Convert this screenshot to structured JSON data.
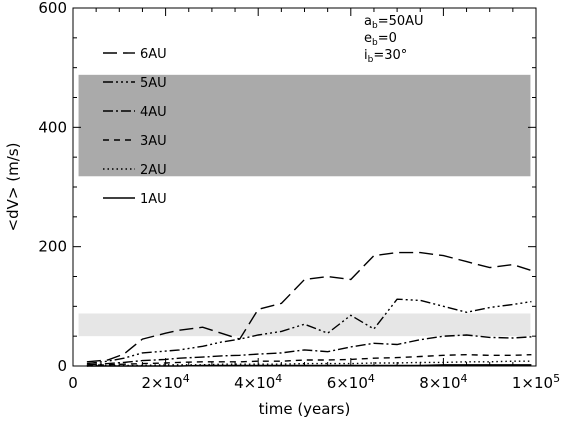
{
  "chart_data": {
    "type": "line",
    "title": "",
    "xlabel": "time (years)",
    "ylabel": "<dV> (m/s)",
    "xlim": [
      0,
      100000
    ],
    "ylim": [
      0,
      600
    ],
    "xticks": [
      {
        "value": 0,
        "base": "0",
        "exp": ""
      },
      {
        "value": 20000,
        "base": "2×10",
        "exp": "4"
      },
      {
        "value": 40000,
        "base": "4×10",
        "exp": "4"
      },
      {
        "value": 60000,
        "base": "6×10",
        "exp": "4"
      },
      {
        "value": 80000,
        "base": "8×10",
        "exp": "4"
      },
      {
        "value": 100000,
        "base": "1×10",
        "exp": "5"
      }
    ],
    "yticks": [
      {
        "value": 0,
        "label": "0"
      },
      {
        "value": 200,
        "label": "200"
      },
      {
        "value": 400,
        "label": "400"
      },
      {
        "value": 600,
        "label": "600"
      }
    ],
    "shaded_bands": [
      {
        "y0": 318,
        "y1": 488,
        "color": "#aaaaaa"
      },
      {
        "y0": 50,
        "y1": 88,
        "color": "#e6e6e6"
      }
    ],
    "annotation": [
      {
        "base": "a",
        "sub": "b",
        "text": "=50AU"
      },
      {
        "base": "e",
        "sub": "b",
        "text": "=0"
      },
      {
        "base": "i",
        "sub": "b",
        "text": "=30°"
      }
    ],
    "legend_position": "top-left",
    "x": [
      3000,
      7500,
      11000,
      15000,
      20000,
      23000,
      28000,
      32000,
      36000,
      40000,
      45000,
      50000,
      55000,
      60000,
      65000,
      70000,
      75000,
      80000,
      85000,
      90000,
      95000,
      99000
    ],
    "series": [
      {
        "name": "6AU",
        "dash": "14 6",
        "values": [
          7,
          10,
          20,
          45,
          55,
          60,
          65,
          55,
          45,
          95,
          105,
          145,
          150,
          145,
          185,
          190,
          190,
          185,
          175,
          165,
          170,
          160
        ]
      },
      {
        "name": "5AU",
        "dash": "10 3 2 3 2 3 2 3",
        "values": [
          4,
          8,
          13,
          22,
          25,
          27,
          33,
          40,
          45,
          52,
          58,
          70,
          55,
          85,
          62,
          112,
          110,
          100,
          90,
          98,
          103,
          108
        ]
      },
      {
        "name": "4AU",
        "dash": "10 3 2 3",
        "values": [
          2,
          4,
          6,
          9,
          11,
          13,
          15,
          17,
          18,
          20,
          22,
          27,
          24,
          32,
          38,
          36,
          44,
          50,
          52,
          48,
          47,
          49
        ]
      },
      {
        "name": "3AU",
        "dash": "6 5",
        "values": [
          1,
          2,
          3,
          4,
          5,
          6,
          7,
          7,
          7,
          8,
          8,
          10,
          10,
          11,
          13,
          14,
          16,
          18,
          19,
          18,
          18,
          19
        ]
      },
      {
        "name": "2AU",
        "dash": "1.5 3",
        "values": [
          0,
          1,
          1,
          1,
          2,
          2,
          2,
          3,
          3,
          3,
          3,
          4,
          4,
          4,
          5,
          5,
          6,
          6,
          7,
          7,
          8,
          8
        ]
      },
      {
        "name": "1AU",
        "dash": "",
        "values": [
          0,
          0,
          0,
          0,
          0,
          0,
          1,
          1,
          1,
          1,
          1,
          1,
          1,
          1,
          1,
          1,
          1,
          2,
          2,
          2,
          2,
          2
        ]
      }
    ]
  }
}
